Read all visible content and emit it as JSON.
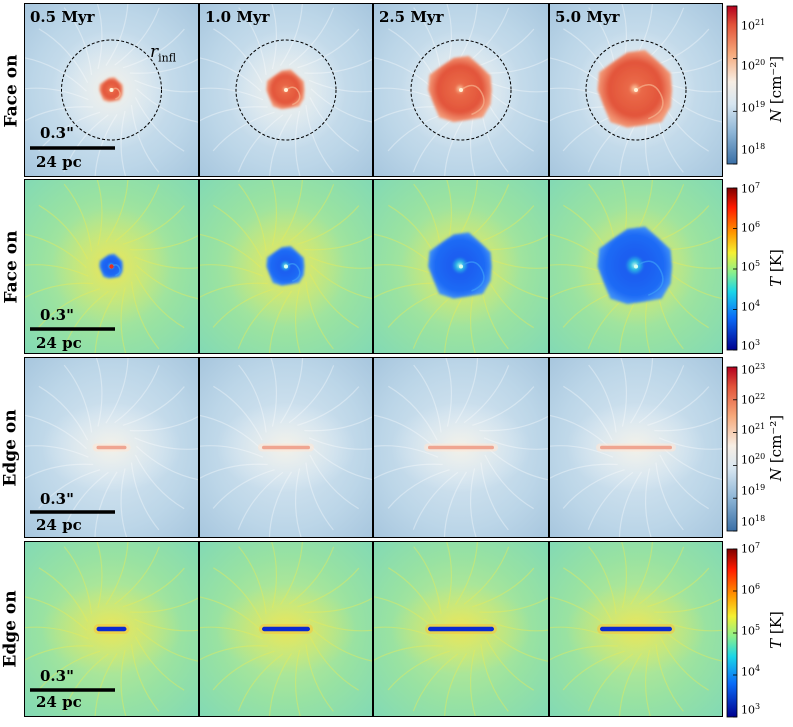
{
  "time_labels": [
    "0.5 Myr",
    "1.0 Myr",
    "2.5 Myr",
    "5.0 Myr"
  ],
  "rows": [
    {
      "view": "Face on",
      "quantity": "N",
      "unit": "[cm⁻²]",
      "colormap": "reds-blues",
      "ticks": [
        "10",
        "10",
        "10",
        "10"
      ],
      "tick_exponents": [
        "21",
        "20",
        "19",
        "18"
      ]
    },
    {
      "view": "Face on",
      "quantity": "T",
      "unit": "[K]",
      "colormap": "jet",
      "ticks": [
        "10",
        "10",
        "10",
        "10",
        "10"
      ],
      "tick_exponents": [
        "7",
        "6",
        "5",
        "4",
        "3"
      ]
    },
    {
      "view": "Edge on",
      "quantity": "N",
      "unit": "[cm⁻²]",
      "colormap": "reds-blues",
      "ticks": [
        "10",
        "10",
        "10",
        "10",
        "10",
        "10"
      ],
      "tick_exponents": [
        "23",
        "22",
        "21",
        "20",
        "19",
        "18"
      ]
    },
    {
      "view": "Edge on",
      "quantity": "T",
      "unit": "[K]",
      "colormap": "jet",
      "ticks": [
        "10",
        "10",
        "10",
        "10",
        "10"
      ],
      "tick_exponents": [
        "7",
        "6",
        "5",
        "4",
        "3"
      ]
    }
  ],
  "scale_bar": {
    "angular": "0.3\"",
    "physical": "24 pc"
  },
  "annotation": {
    "r_symbol": "r",
    "r_subscript": "infl"
  },
  "colors": {
    "jet_bg": "#8fe0a6",
    "reds_bg": "#bcd6e8",
    "disk_red": "#e2543a",
    "cold_blue": "#1a5cf0"
  }
}
